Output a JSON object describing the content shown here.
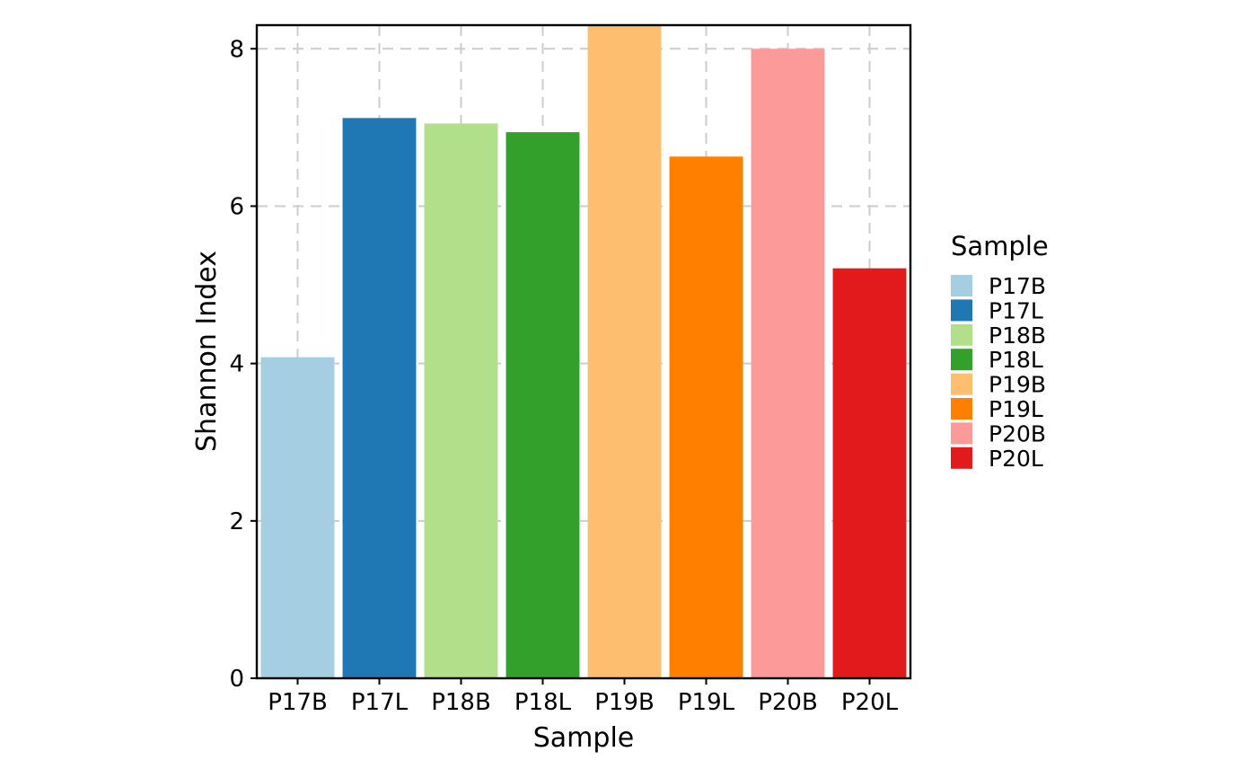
{
  "chart_data": {
    "type": "bar",
    "title": "",
    "xlabel": "Sample",
    "ylabel": "Shannon Index",
    "categories": [
      "P17B",
      "P17L",
      "P18B",
      "P18L",
      "P19B",
      "P19L",
      "P20B",
      "P20L"
    ],
    "values": [
      4.08,
      7.12,
      7.05,
      6.94,
      8.55,
      6.63,
      8.0,
      5.21
    ],
    "colors": [
      "#a6cee3",
      "#1f78b4",
      "#b2df8a",
      "#33a02c",
      "#fdbf6f",
      "#ff7f00",
      "#fb9a99",
      "#e31a1c"
    ],
    "ylim": [
      0,
      8.3
    ],
    "yticks": [
      0,
      2,
      4,
      6,
      8
    ],
    "grid": true,
    "legend": {
      "title": "Sample",
      "placement": "right",
      "entries": [
        "P17B",
        "P17L",
        "P18B",
        "P18L",
        "P19B",
        "P19L",
        "P20B",
        "P20L"
      ]
    }
  }
}
